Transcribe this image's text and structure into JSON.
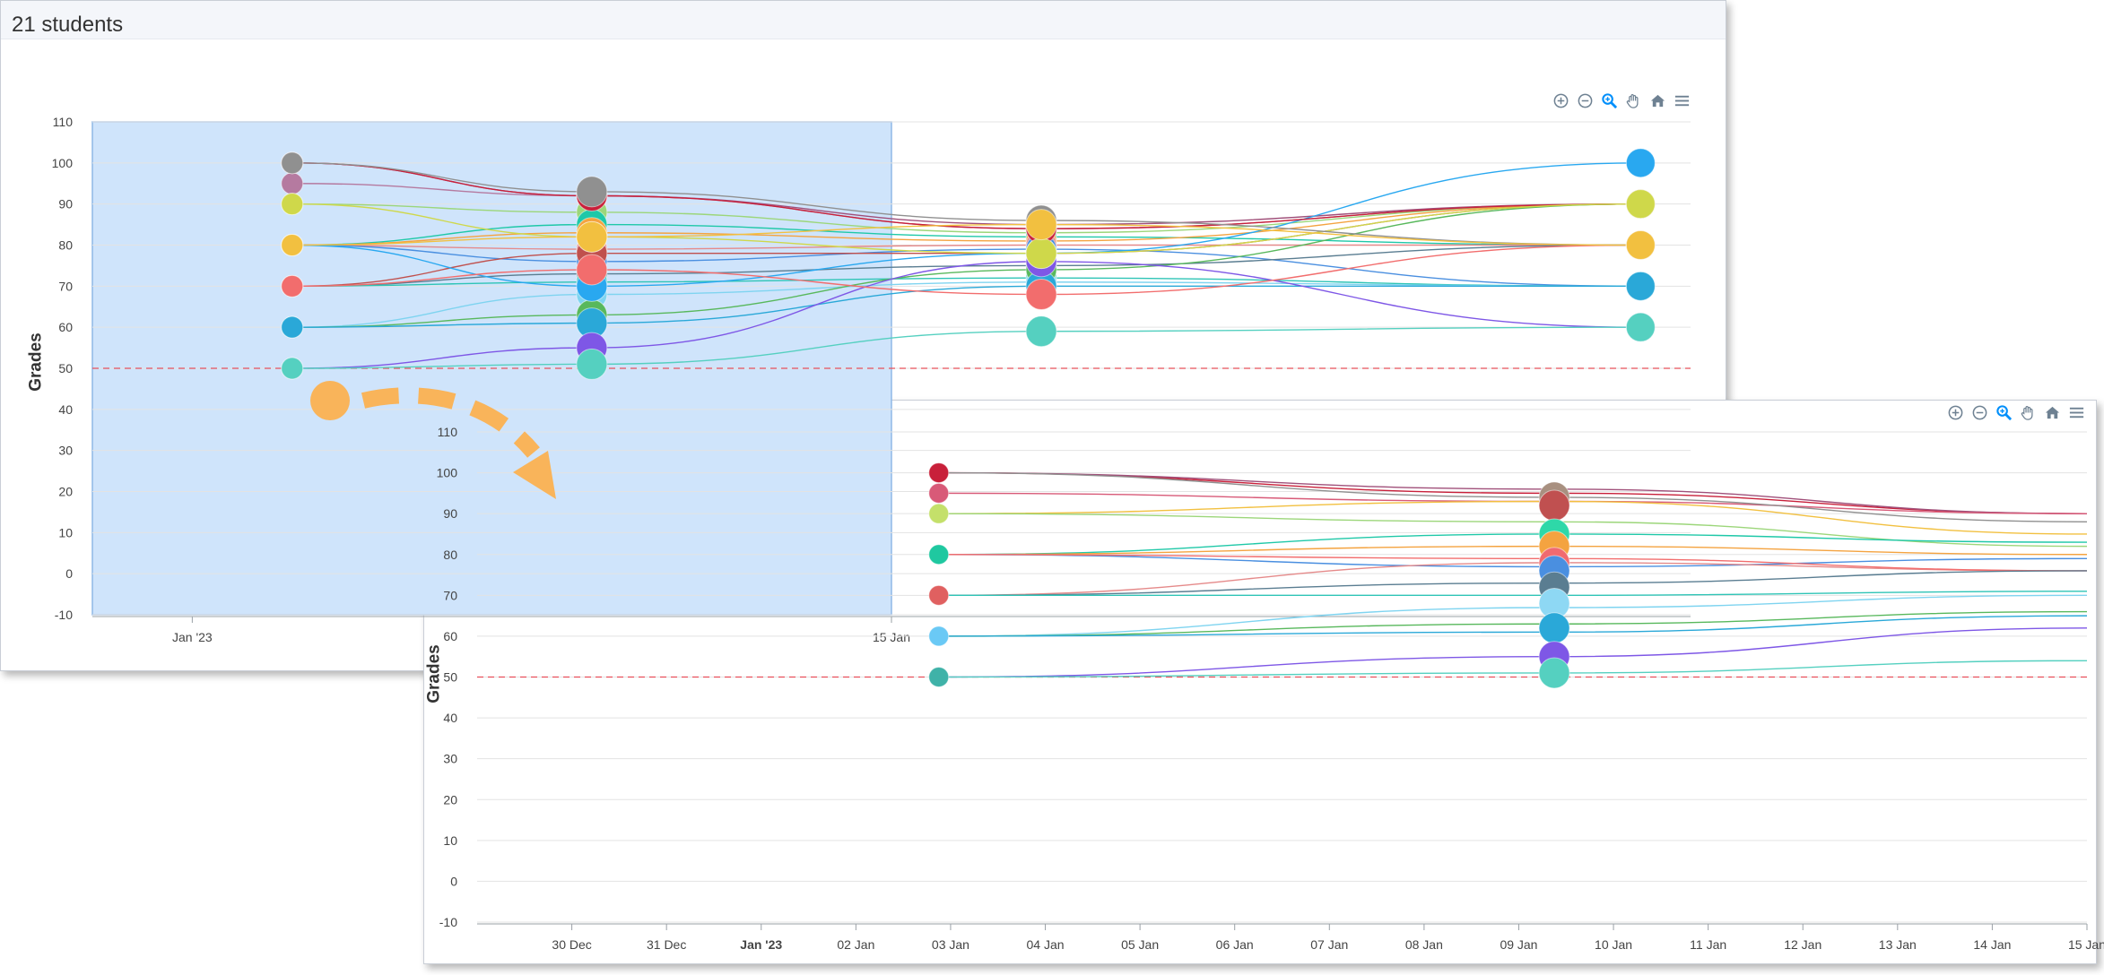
{
  "header": {
    "title": "21 students"
  },
  "toolbar": {
    "icons": [
      "zoom-in-icon",
      "zoom-out-icon",
      "selection-zoom-icon",
      "pan-hand-icon",
      "home-reset-icon",
      "menu-icon"
    ],
    "active_color": "#008ffb",
    "default_color": "#6e8192"
  },
  "colors": {
    "threshold": "#e8505b",
    "selection_fill": "#cfe4fb",
    "selection_stroke": "#8fb8e6",
    "arrow": "#f9b45a"
  },
  "chart_data": [
    {
      "type": "line",
      "view": "overview",
      "ylabel": "Grades",
      "ylim": [
        -10,
        110
      ],
      "yticks": [
        -10,
        0,
        10,
        20,
        30,
        40,
        50,
        60,
        70,
        80,
        90,
        100,
        110
      ],
      "xlim": [
        "2022-12-30",
        "2023-01-31"
      ],
      "xticks": [
        {
          "x": "2023-01-01",
          "label": "Jan '23"
        },
        {
          "x": "2023-01-15",
          "label": "15 Jan"
        }
      ],
      "selection_range": [
        "2022-12-30",
        "2023-01-15"
      ],
      "threshold": 50,
      "grid": true,
      "legend": "none",
      "marker_x": [
        "2023-01-03",
        "2023-01-09",
        "2023-01-18",
        "2023-01-30"
      ],
      "series": [
        {
          "color": "#a0507a",
          "values": [
            100,
            92,
            85,
            90
          ]
        },
        {
          "color": "#b57aa0",
          "values": [
            95,
            92,
            84,
            90
          ]
        },
        {
          "color": "#9cd67a",
          "values": [
            90,
            88,
            83,
            90
          ]
        },
        {
          "color": "#1fc8a8",
          "values": [
            80,
            85,
            82,
            80
          ]
        },
        {
          "color": "#f4a340",
          "values": [
            80,
            83,
            81,
            90
          ]
        },
        {
          "color": "#e58a8a",
          "values": [
            80,
            79,
            80,
            80
          ]
        },
        {
          "color": "#4a8fe0",
          "values": [
            80,
            76,
            79,
            70
          ]
        },
        {
          "color": "#c0504d",
          "values": [
            70,
            78,
            78,
            90
          ]
        },
        {
          "color": "#5a7d91",
          "values": [
            70,
            73,
            75,
            80
          ]
        },
        {
          "color": "#2ec4b6",
          "values": [
            70,
            71,
            72,
            70
          ]
        },
        {
          "color": "#7fd4f0",
          "values": [
            60,
            68,
            71,
            70
          ]
        },
        {
          "color": "#58b85c",
          "values": [
            60,
            63,
            74,
            90
          ]
        },
        {
          "color": "#2aa8d8",
          "values": [
            60,
            61,
            70,
            70
          ]
        },
        {
          "color": "#7e57e6",
          "values": [
            50,
            55,
            76,
            60
          ]
        },
        {
          "color": "#55d0c0",
          "values": [
            50,
            51,
            59,
            60
          ]
        },
        {
          "color": "#29a8f0",
          "values": [
            80,
            70,
            78,
            100
          ]
        },
        {
          "color": "#c8203a",
          "values": [
            100,
            92,
            84,
            90
          ]
        },
        {
          "color": "#f26d6d",
          "values": [
            70,
            74,
            68,
            80
          ]
        },
        {
          "color": "#cfd84a",
          "values": [
            90,
            82,
            78,
            90
          ]
        },
        {
          "color": "#909090",
          "values": [
            100,
            93,
            86,
            80
          ]
        },
        {
          "color": "#f2c040",
          "values": [
            80,
            82,
            85,
            80
          ]
        }
      ]
    },
    {
      "type": "line",
      "view": "zoomed",
      "ylabel": "Grades",
      "ylim": [
        -10,
        110
      ],
      "yticks": [
        -10,
        0,
        10,
        20,
        30,
        40,
        50,
        60,
        70,
        80,
        90,
        100,
        110
      ],
      "xlim": [
        "2022-12-29",
        "2023-01-15"
      ],
      "xticks": [
        {
          "x": "2022-12-30",
          "label": "30 Dec"
        },
        {
          "x": "2022-12-31",
          "label": "31 Dec"
        },
        {
          "x": "2023-01-01",
          "label": "Jan '23",
          "bold": true
        },
        {
          "x": "2023-01-02",
          "label": "02 Jan"
        },
        {
          "x": "2023-01-03",
          "label": "03 Jan"
        },
        {
          "x": "2023-01-04",
          "label": "04 Jan"
        },
        {
          "x": "2023-01-05",
          "label": "05 Jan"
        },
        {
          "x": "2023-01-06",
          "label": "06 Jan"
        },
        {
          "x": "2023-01-07",
          "label": "07 Jan"
        },
        {
          "x": "2023-01-08",
          "label": "08 Jan"
        },
        {
          "x": "2023-01-09",
          "label": "09 Jan"
        },
        {
          "x": "2023-01-10",
          "label": "10 Jan"
        },
        {
          "x": "2023-01-11",
          "label": "11 Jan"
        },
        {
          "x": "2023-01-12",
          "label": "12 Jan"
        },
        {
          "x": "2023-01-13",
          "label": "13 Jan"
        },
        {
          "x": "2023-01-14",
          "label": "14 Jan"
        },
        {
          "x": "2023-01-15",
          "label": "15 Jan"
        }
      ],
      "threshold": 50,
      "grid": true,
      "legend": "none",
      "marker_x": [
        "2023-01-02T21:00",
        "2023-01-09T09:00"
      ],
      "series": [
        {
          "color": "#c8203a",
          "values": [
            100,
            95,
            90
          ]
        },
        {
          "color": "#a0507a",
          "values": [
            100,
            96,
            90
          ]
        },
        {
          "color": "#d85a78",
          "values": [
            95,
            93,
            90
          ]
        },
        {
          "color": "#f2c040",
          "values": [
            90,
            93,
            85
          ]
        },
        {
          "color": "#9cd67a",
          "values": [
            90,
            88,
            82
          ]
        },
        {
          "color": "#909090",
          "values": [
            100,
            94,
            88
          ]
        },
        {
          "color": "#1fc8a8",
          "values": [
            80,
            85,
            83
          ]
        },
        {
          "color": "#f4a340",
          "values": [
            80,
            82,
            80
          ]
        },
        {
          "color": "#4a8fe0",
          "values": [
            80,
            77,
            79
          ]
        },
        {
          "color": "#e58a8a",
          "values": [
            70,
            78,
            76
          ]
        },
        {
          "color": "#f26d6d",
          "values": [
            80,
            79,
            76
          ]
        },
        {
          "color": "#5a7d91",
          "values": [
            70,
            73,
            76
          ]
        },
        {
          "color": "#2ec4b6",
          "values": [
            70,
            70,
            71
          ]
        },
        {
          "color": "#7fd4f0",
          "values": [
            60,
            67,
            70
          ]
        },
        {
          "color": "#58b85c",
          "values": [
            60,
            63,
            66
          ]
        },
        {
          "color": "#2aa8d8",
          "values": [
            60,
            61,
            65
          ]
        },
        {
          "color": "#7e57e6",
          "values": [
            50,
            55,
            62
          ]
        },
        {
          "color": "#55d0c0",
          "values": [
            50,
            51,
            54
          ]
        }
      ],
      "markers": [
        {
          "x": "2023-01-02T21:00",
          "y": 100,
          "color": "#c8203a",
          "big": false
        },
        {
          "x": "2023-01-02T21:00",
          "y": 95,
          "color": "#d85a78",
          "big": false
        },
        {
          "x": "2023-01-02T21:00",
          "y": 90,
          "color": "#c4e06a",
          "big": false
        },
        {
          "x": "2023-01-02T21:00",
          "y": 80,
          "color": "#1fc8a0",
          "big": false
        },
        {
          "x": "2023-01-02T21:00",
          "y": 70,
          "color": "#e06060",
          "big": false
        },
        {
          "x": "2023-01-02T21:00",
          "y": 60,
          "color": "#6ac9f5",
          "big": false
        },
        {
          "x": "2023-01-02T21:00",
          "y": 50,
          "color": "#3fb2a8",
          "big": false
        },
        {
          "x": "2023-01-09T09:00",
          "y": 94,
          "color": "#a89080",
          "big": true
        },
        {
          "x": "2023-01-09T09:00",
          "y": 92,
          "color": "#c05050",
          "big": true
        },
        {
          "x": "2023-01-09T09:00",
          "y": 85,
          "color": "#2ed8a8",
          "big": true
        },
        {
          "x": "2023-01-09T09:00",
          "y": 82,
          "color": "#f4a340",
          "big": true
        },
        {
          "x": "2023-01-09T09:00",
          "y": 78,
          "color": "#f06a70",
          "big": true
        },
        {
          "x": "2023-01-09T09:00",
          "y": 76,
          "color": "#4a8fe0",
          "big": true
        },
        {
          "x": "2023-01-09T09:00",
          "y": 72,
          "color": "#5a7d91",
          "big": true
        },
        {
          "x": "2023-01-09T09:00",
          "y": 68,
          "color": "#8ed8f4",
          "big": true
        },
        {
          "x": "2023-01-09T09:00",
          "y": 62,
          "color": "#2aa8d8",
          "big": true
        },
        {
          "x": "2023-01-09T09:00",
          "y": 55,
          "color": "#7e57e6",
          "big": true
        },
        {
          "x": "2023-01-09T09:00",
          "y": 51,
          "color": "#55d0c0",
          "big": true
        }
      ]
    }
  ]
}
